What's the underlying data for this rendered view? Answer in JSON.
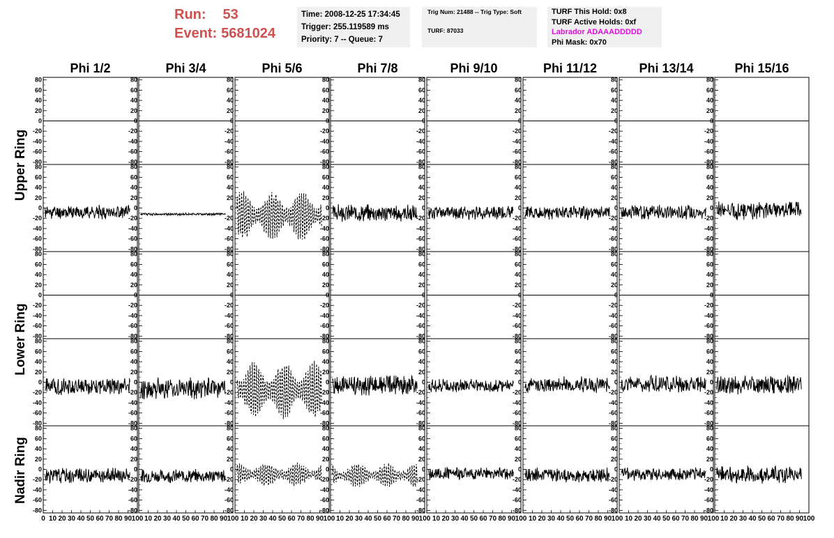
{
  "header": {
    "run_label": "Run:",
    "run_value": "53",
    "event_label": "Event:",
    "event_value": "5681024",
    "time": "Time: 2008-12-25 17:34:45",
    "trigger": "Trigger: 255.119589 ms",
    "priority": "Priority: 7 -- Queue: 7",
    "trig_info": "Trig Num: 21488 -- Trig Type: Soft",
    "turf": "TURF: 87033",
    "turf_this_hold": "TURF This Hold: 0x8",
    "turf_active_holds": "TURF Active Holds: 0xf",
    "labrador": "Labrador ADAAADDDDD",
    "phi_mask": "Phi Mask: 0x70"
  },
  "colors": {
    "run_text": "#d05050",
    "labrador_text": "#e010e0",
    "info_bg": "#f0f0f0",
    "trace": "#000000"
  },
  "columns": [
    "Phi 1/2",
    "Phi 3/4",
    "Phi 5/6",
    "Phi 7/8",
    "Phi 9/10",
    "Phi 11/12",
    "Phi 13/14",
    "Phi 15/16"
  ],
  "rings": [
    "Upper Ring",
    "Lower Ring",
    "Nadir Ring"
  ],
  "chart_data": {
    "type": "line",
    "layout": "grid of 8 columns x 5 rows of waveform panels",
    "y_ticks": [
      80,
      60,
      40,
      20,
      0,
      -20,
      -40,
      -60,
      -80
    ],
    "ylim": [
      -85,
      85
    ],
    "x_ticks": [
      0,
      10,
      20,
      30,
      40,
      50,
      60,
      70,
      80,
      90,
      100
    ],
    "xlim": [
      0,
      100
    ],
    "waveform_points": 200,
    "rows": [
      {
        "ring": "Upper Ring",
        "panels": [
          {
            "kind": "flat"
          },
          {
            "kind": "flat"
          },
          {
            "kind": "flat"
          },
          {
            "kind": "flat"
          },
          {
            "kind": "flat"
          },
          {
            "kind": "flat"
          },
          {
            "kind": "flat"
          },
          {
            "kind": "flat"
          }
        ]
      },
      {
        "ring": "Upper Ring",
        "panels": [
          {
            "kind": "noise",
            "offset": -8,
            "amp": 11,
            "seed": 11
          },
          {
            "kind": "noise",
            "offset": -12,
            "amp": 2,
            "seed": 12
          },
          {
            "kind": "osc",
            "offset": -15,
            "amp": 48,
            "dashed": true,
            "seed": 13
          },
          {
            "kind": "noise",
            "offset": -10,
            "amp": 14,
            "seed": 14
          },
          {
            "kind": "noise",
            "offset": -9,
            "amp": 11,
            "seed": 15
          },
          {
            "kind": "noise",
            "offset": -9,
            "amp": 11,
            "seed": 16
          },
          {
            "kind": "noise",
            "offset": -8,
            "amp": 12,
            "seed": 17
          },
          {
            "kind": "noise",
            "offset": -5,
            "amp": 15,
            "seed": 18
          }
        ]
      },
      {
        "ring": "Lower Ring",
        "panels": [
          {
            "kind": "flat"
          },
          {
            "kind": "flat"
          },
          {
            "kind": "flat"
          },
          {
            "kind": "flat"
          },
          {
            "kind": "flat"
          },
          {
            "kind": "flat"
          },
          {
            "kind": "flat"
          },
          {
            "kind": "flat"
          }
        ]
      },
      {
        "ring": "Lower Ring",
        "panels": [
          {
            "kind": "noise",
            "offset": -8,
            "amp": 14,
            "seed": 21
          },
          {
            "kind": "noise",
            "offset": -12,
            "amp": 18,
            "seed": 22
          },
          {
            "kind": "osc",
            "offset": -15,
            "amp": 55,
            "dashed": true,
            "seed": 23
          },
          {
            "kind": "noise",
            "offset": -6,
            "amp": 16,
            "seed": 24
          },
          {
            "kind": "noise",
            "offset": -7,
            "amp": 11,
            "seed": 25
          },
          {
            "kind": "noise",
            "offset": -5,
            "amp": 13,
            "seed": 26
          },
          {
            "kind": "noise",
            "offset": -4,
            "amp": 14,
            "seed": 27
          },
          {
            "kind": "noise",
            "offset": -5,
            "amp": 16,
            "seed": 28
          }
        ]
      },
      {
        "ring": "Nadir Ring",
        "panels": [
          {
            "kind": "noise",
            "offset": -12,
            "amp": 13,
            "seed": 31
          },
          {
            "kind": "noise",
            "offset": -13,
            "amp": 11,
            "seed": 32
          },
          {
            "kind": "osc",
            "offset": -10,
            "amp": 22,
            "dashed": true,
            "seed": 33
          },
          {
            "kind": "osc",
            "offset": -12,
            "amp": 22,
            "dashed": true,
            "seed": 34
          },
          {
            "kind": "noise",
            "offset": -8,
            "amp": 10,
            "seed": 35
          },
          {
            "kind": "noise",
            "offset": -12,
            "amp": 12,
            "seed": 36
          },
          {
            "kind": "noise",
            "offset": -9,
            "amp": 11,
            "seed": 37
          },
          {
            "kind": "noise",
            "offset": -10,
            "amp": 14,
            "seed": 38
          }
        ]
      }
    ]
  }
}
